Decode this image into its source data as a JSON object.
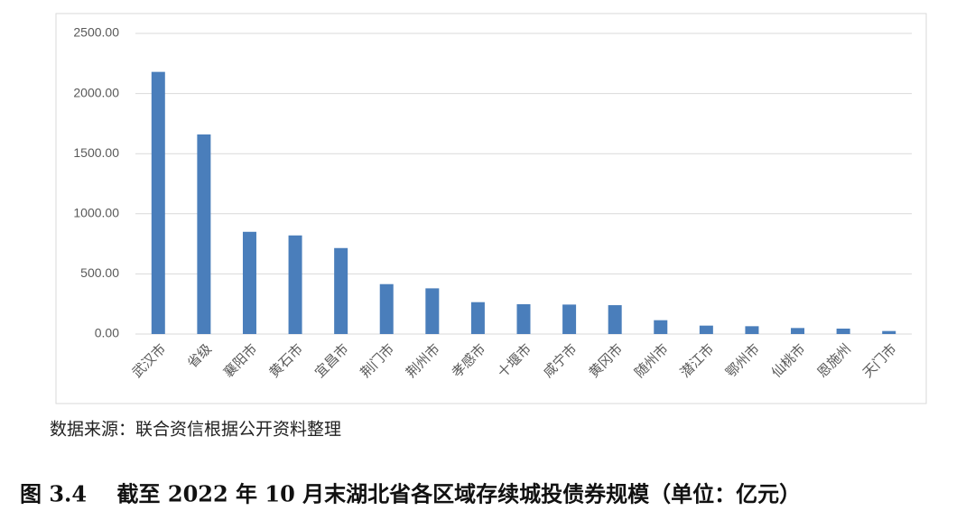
{
  "chart_data": {
    "type": "bar",
    "categories": [
      "武汉市",
      "省级",
      "襄阳市",
      "黄石市",
      "宜昌市",
      "荆门市",
      "荆州市",
      "孝感市",
      "十堰市",
      "咸宁市",
      "黄冈市",
      "随州市",
      "潜江市",
      "鄂州市",
      "仙桃市",
      "恩施州",
      "天门市"
    ],
    "values": [
      2180,
      1660,
      850,
      820,
      715,
      415,
      380,
      265,
      248,
      245,
      240,
      115,
      70,
      65,
      50,
      45,
      25
    ],
    "color": "#4a7ebb",
    "ylim": [
      0,
      2500
    ],
    "yticks": [
      {
        "value": 0,
        "label": "0.00"
      },
      {
        "value": 500,
        "label": "500.00"
      },
      {
        "value": 1000,
        "label": "1000.00"
      },
      {
        "value": 1500,
        "label": "1500.00"
      },
      {
        "value": 2000,
        "label": "2000.00"
      },
      {
        "value": 2500,
        "label": "2500.00"
      }
    ],
    "grid": true,
    "note": "数据来源：联合资信根据公开资料整理",
    "caption": "图 3.4    截至 2022 年 10 月末湖北省各区域存续城投债券规模（单位：亿元）"
  }
}
